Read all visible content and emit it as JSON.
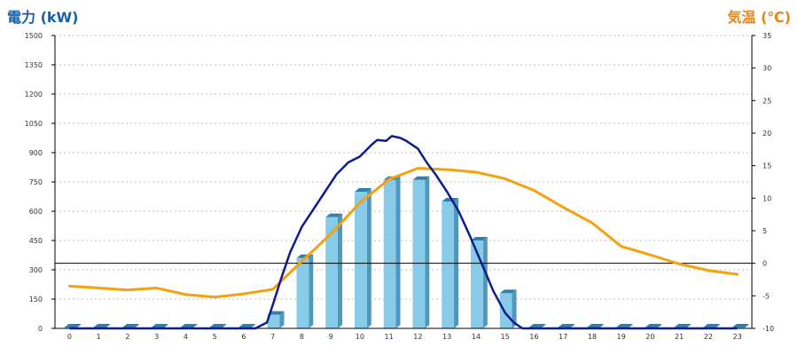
{
  "colors": {
    "power_axis_title": "#1a5fa0",
    "temp_axis_title": "#e8851a",
    "bar_front": "#87cbe8",
    "bar_side": "#4f97bb",
    "bar_top": "#2f7fae",
    "power_line": "#0f1d8c",
    "temp_line": "#f5a20f",
    "grid": "#bdbdbd",
    "axis": "#000000"
  },
  "chart_data": {
    "type": "bar",
    "left_axis_title": "電力 (kW)",
    "right_axis_title": "気温 (℃)",
    "categories": [
      "0",
      "1",
      "2",
      "3",
      "4",
      "5",
      "6",
      "7",
      "8",
      "9",
      "10",
      "11",
      "12",
      "13",
      "14",
      "15",
      "16",
      "17",
      "18",
      "19",
      "20",
      "21",
      "22",
      "23"
    ],
    "left_ylim": [
      0,
      1500
    ],
    "left_ticks": [
      "0",
      "150",
      "300",
      "450",
      "600",
      "750",
      "900",
      "1050",
      "1200",
      "1350",
      "1500"
    ],
    "right_ylim": [
      -10,
      35
    ],
    "right_ticks": [
      "-10",
      "-5",
      "0",
      "5",
      "10",
      "15",
      "20",
      "25",
      "30",
      "35"
    ],
    "grid": true,
    "bars": {
      "name": "",
      "values": [
        0,
        0,
        0,
        0,
        0,
        0,
        0,
        70,
        360,
        570,
        700,
        760,
        760,
        650,
        450,
        180,
        0,
        0,
        0,
        0,
        0,
        0,
        0,
        0
      ]
    },
    "power_curve": {
      "x": [
        0,
        6.4,
        6.8,
        7,
        7.3,
        7.6,
        8,
        8.4,
        8.8,
        9.2,
        9.6,
        10,
        10.4,
        10.6,
        10.9,
        11.1,
        11.4,
        11.6,
        11.8,
        12,
        12.3,
        12.6,
        13,
        13.4,
        13.8,
        14.2,
        14.6,
        15,
        15.3,
        15.6,
        15.8,
        23
      ],
      "y": [
        0,
        0,
        30,
        120,
        260,
        390,
        520,
        610,
        700,
        790,
        850,
        880,
        940,
        965,
        960,
        985,
        975,
        960,
        940,
        920,
        850,
        790,
        700,
        600,
        470,
        330,
        190,
        80,
        30,
        0,
        0,
        0
      ]
    },
    "temperature": {
      "x": [
        0,
        1,
        2,
        3,
        4,
        5,
        6,
        7,
        8,
        9,
        10,
        11,
        12,
        13,
        14,
        15,
        16,
        17,
        18,
        19,
        20,
        21,
        22,
        23
      ],
      "y": [
        -3.5,
        -3.8,
        -4.1,
        -3.8,
        -4.8,
        -5.2,
        -4.7,
        -4,
        0.3,
        4.5,
        9.3,
        12.9,
        14.6,
        14.4,
        14,
        13,
        11.2,
        8.6,
        6.2,
        2.6,
        1.3,
        -0.1,
        -1.1,
        -1.7
      ]
    },
    "reference_line": {
      "temperature": 0
    }
  }
}
